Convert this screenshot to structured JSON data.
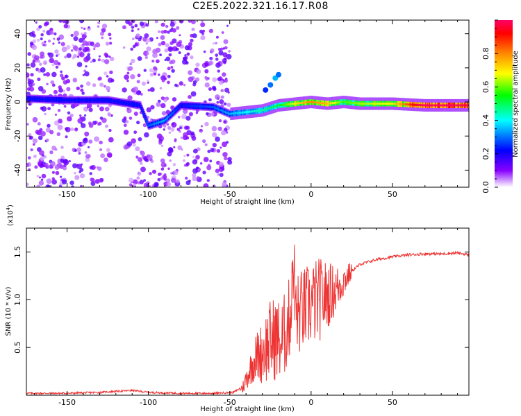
{
  "title": "C2E5.2022.321.16.17.R08",
  "chart_data": [
    {
      "type": "heatmap",
      "xlabel": "Height of straight line (km)",
      "ylabel": "Frequency (Hz)",
      "xlim": [
        -175,
        97
      ],
      "ylim": [
        -50,
        48
      ],
      "x_ticks": [
        -150,
        -100,
        -50,
        0,
        50
      ],
      "x_tick_labels": [
        "-150",
        "-100",
        "-50",
        "0",
        "50"
      ],
      "y_ticks": [
        -40,
        -20,
        0,
        20,
        40
      ],
      "y_tick_labels": [
        "-40",
        "-20",
        "0",
        "20",
        "40"
      ],
      "colorbar": {
        "label": "Normalized spectral amplitude",
        "range": [
          0,
          1
        ],
        "ticks": [
          0.0,
          0.2,
          0.4,
          0.6,
          0.8
        ],
        "tick_labels": [
          "0.0",
          "0.2",
          "0.4",
          "0.6",
          "0.8"
        ],
        "colors": [
          "#ffffff",
          "#8800ff",
          "#0000ff",
          "#00ffff",
          "#00ff00",
          "#ffff00",
          "#ff8800",
          "#ff0000",
          "#ff0066"
        ]
      },
      "ridge_track": {
        "x": [
          -175,
          -150,
          -125,
          -105,
          -100,
          -90,
          -80,
          -60,
          -50,
          -40,
          -30,
          -20,
          -10,
          0,
          10,
          20,
          30,
          50,
          70,
          97
        ],
        "frequency": [
          2,
          1,
          1,
          -2,
          -14,
          -11,
          -2,
          -3,
          -7,
          -6,
          -5,
          -2,
          -1,
          0,
          -1,
          0,
          -1,
          -1,
          -2,
          -2
        ],
        "amplitude": [
          0.2,
          0.2,
          0.2,
          0.2,
          0.25,
          0.3,
          0.2,
          0.25,
          0.3,
          0.35,
          0.4,
          0.45,
          0.6,
          0.7,
          0.65,
          0.5,
          0.55,
          0.6,
          0.9,
          0.85
        ]
      },
      "secondary_track": {
        "x": [
          -28,
          -25,
          -22,
          -20
        ],
        "frequency": [
          7,
          10,
          14,
          16
        ],
        "amplitude": [
          0.25,
          0.3,
          0.35,
          0.3
        ]
      },
      "noise_region": {
        "x_from": -175,
        "x_to": -50,
        "level": 0.1
      }
    },
    {
      "type": "line",
      "xlabel": "Height of straight line (km)",
      "ylabel": "SNR (10 * v/v)",
      "y_multiplier": "(x10",
      "y_multiplier_exp": "4",
      "y_multiplier_close": ")",
      "xlim": [
        -175,
        97
      ],
      "ylim": [
        0,
        1.75
      ],
      "x_ticks": [
        -150,
        -100,
        -50,
        0,
        50
      ],
      "x_tick_labels": [
        "-150",
        "-100",
        "-50",
        "0",
        "50"
      ],
      "y_ticks": [
        0.5,
        1.0,
        1.5
      ],
      "y_tick_labels": [
        "0.5",
        "1.0",
        "1.5"
      ],
      "series": [
        {
          "color": "#ee3333",
          "x": [
            -175,
            -150,
            -130,
            -110,
            -100,
            -80,
            -60,
            -48,
            -42,
            -38,
            -34,
            -30,
            -26,
            -22,
            -18,
            -14,
            -12,
            -10,
            -8,
            -4,
            0,
            5,
            10,
            15,
            20,
            25,
            30,
            40,
            50,
            60,
            70,
            80,
            90,
            97
          ],
          "values": [
            0.02,
            0.02,
            0.03,
            0.05,
            0.03,
            0.02,
            0.02,
            0.03,
            0.08,
            0.25,
            0.4,
            0.45,
            0.55,
            0.6,
            0.55,
            0.75,
            0.95,
            0.9,
            0.85,
            0.9,
            0.95,
            1.0,
            1.05,
            1.1,
            1.2,
            1.3,
            1.37,
            1.42,
            1.45,
            1.47,
            1.48,
            1.48,
            1.49,
            1.47
          ]
        }
      ]
    }
  ]
}
